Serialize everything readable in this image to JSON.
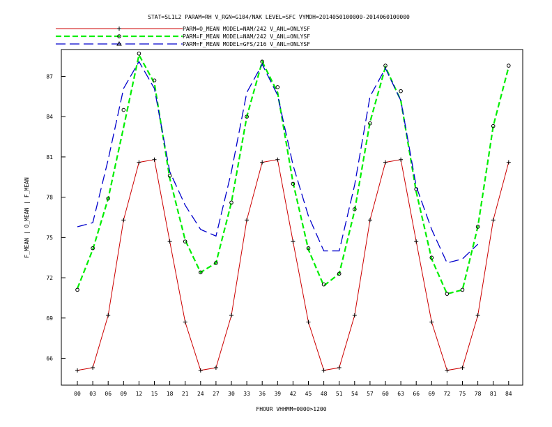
{
  "chart_data": {
    "type": "line",
    "title": "STAT=SL1L2 PARAM=RH V_RGN=G104/NAK LEVEL=SFC VYMDH=2014050100000-2014060100000",
    "xlabel": "FHOUR VHHMM=0000>1200",
    "ylabel": "F_MEAN | O_MEAN | F_MEAN",
    "categories": [
      "00",
      "03",
      "06",
      "09",
      "12",
      "15",
      "18",
      "21",
      "24",
      "27",
      "30",
      "33",
      "36",
      "39",
      "42",
      "45",
      "48",
      "51",
      "54",
      "57",
      "60",
      "63",
      "66",
      "69",
      "72",
      "75",
      "78",
      "81",
      "84"
    ],
    "y_ticks": [
      "66",
      "69",
      "72",
      "75",
      "78",
      "81",
      "84",
      "87"
    ],
    "ylim": [
      64.0,
      89.0
    ],
    "legend_position": "top-left",
    "grid": false,
    "series": [
      {
        "name": "PARM=O_MEAN MODEL=NAM/242 V_ANL=ONLYSF",
        "color": "#cc0000",
        "style": "solid",
        "marker": "plus",
        "values": [
          65.1,
          65.3,
          69.2,
          76.3,
          80.6,
          80.8,
          74.7,
          68.7,
          65.1,
          65.3,
          69.2,
          76.3,
          80.6,
          80.8,
          74.7,
          68.7,
          65.1,
          65.3,
          69.2,
          76.3,
          80.6,
          80.8,
          74.7,
          68.7,
          65.1,
          65.3,
          69.2,
          76.3,
          80.6
        ]
      },
      {
        "name": "PARM=F_MEAN MODEL=NAM/242 V_ANL=ONLYSF",
        "color": "#00ee00",
        "style": "dashed",
        "marker": "diamond",
        "values": [
          71.2,
          74.1,
          77.9,
          83.2,
          88.6,
          86.5,
          79.4,
          74.8,
          72.4,
          73.1,
          77.6,
          84.0,
          88.1,
          85.8,
          79.1,
          74.1,
          71.4,
          72.3,
          77.0,
          83.6,
          87.7,
          85.2,
          78.4,
          73.4,
          70.8,
          71.1,
          75.8,
          83.3,
          87.7
        ],
        "marker_values": [
          71.1,
          74.2,
          77.9,
          84.5,
          88.7,
          86.7,
          79.6,
          74.7,
          72.4,
          73.1,
          77.6,
          84.0,
          88.1,
          86.2,
          79.0,
          74.2,
          71.5,
          72.3,
          77.1,
          83.5,
          87.8,
          85.9,
          78.6,
          73.5,
          70.8,
          71.1,
          75.8,
          83.3,
          87.8
        ]
      },
      {
        "name": "PARM=F_MEAN MODEL=GFS/216 V_ANL=ONLYSF",
        "color": "#0000cc",
        "style": "long-dash",
        "marker": "triangle",
        "values": [
          75.8,
          76.1,
          80.8,
          86.1,
          88.1,
          86.1,
          79.9,
          77.4,
          75.6,
          75.1,
          79.9,
          85.8,
          87.9,
          85.6,
          80.4,
          76.6,
          74.0,
          74.0,
          78.9,
          85.5,
          87.6,
          85.2,
          78.8,
          75.6,
          73.1,
          73.4,
          74.5,
          null,
          null
        ]
      }
    ]
  }
}
